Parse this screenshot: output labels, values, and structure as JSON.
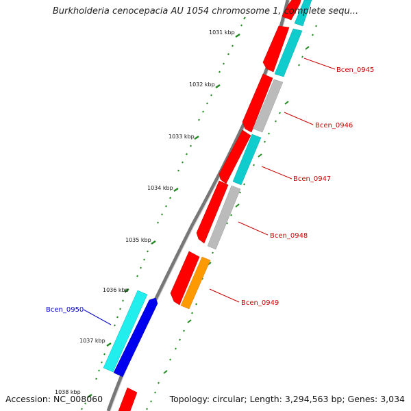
{
  "header": {
    "title": "Burkholderia cenocepacia AU 1054 chromosome 1, complete sequ..."
  },
  "footer": {
    "accession": "Accession: NC_008060",
    "summary": "Topology: circular; Length: 3,294,563 bp; Genes: 3,034"
  },
  "ruler": {
    "ticks": [
      "1031 kbp",
      "1032 kbp",
      "1033 kbp",
      "1034 kbp",
      "1035 kbp",
      "1036 kbp",
      "1037 kbp",
      "1038 kbp"
    ]
  },
  "genes": [
    {
      "name": "Bcen_0945",
      "color": "#cc0000"
    },
    {
      "name": "Bcen_0946",
      "color": "#cc0000"
    },
    {
      "name": "Bcen_0947",
      "color": "#cc0000"
    },
    {
      "name": "Bcen_0948",
      "color": "#cc0000"
    },
    {
      "name": "Bcen_0949",
      "color": "#cc0000"
    },
    {
      "name": "Bcen_0950",
      "color": "#0000cc"
    }
  ],
  "colors": {
    "cds_forward": "#ff0000",
    "cds_reverse": "#0000ee",
    "cog_cyan": "#11cccc",
    "cog_grey": "#bbbbbb",
    "cog_orange": "#ff9900",
    "cog_light_cyan": "#22eeee",
    "backbone": "#777777",
    "ticks": "#228822"
  }
}
